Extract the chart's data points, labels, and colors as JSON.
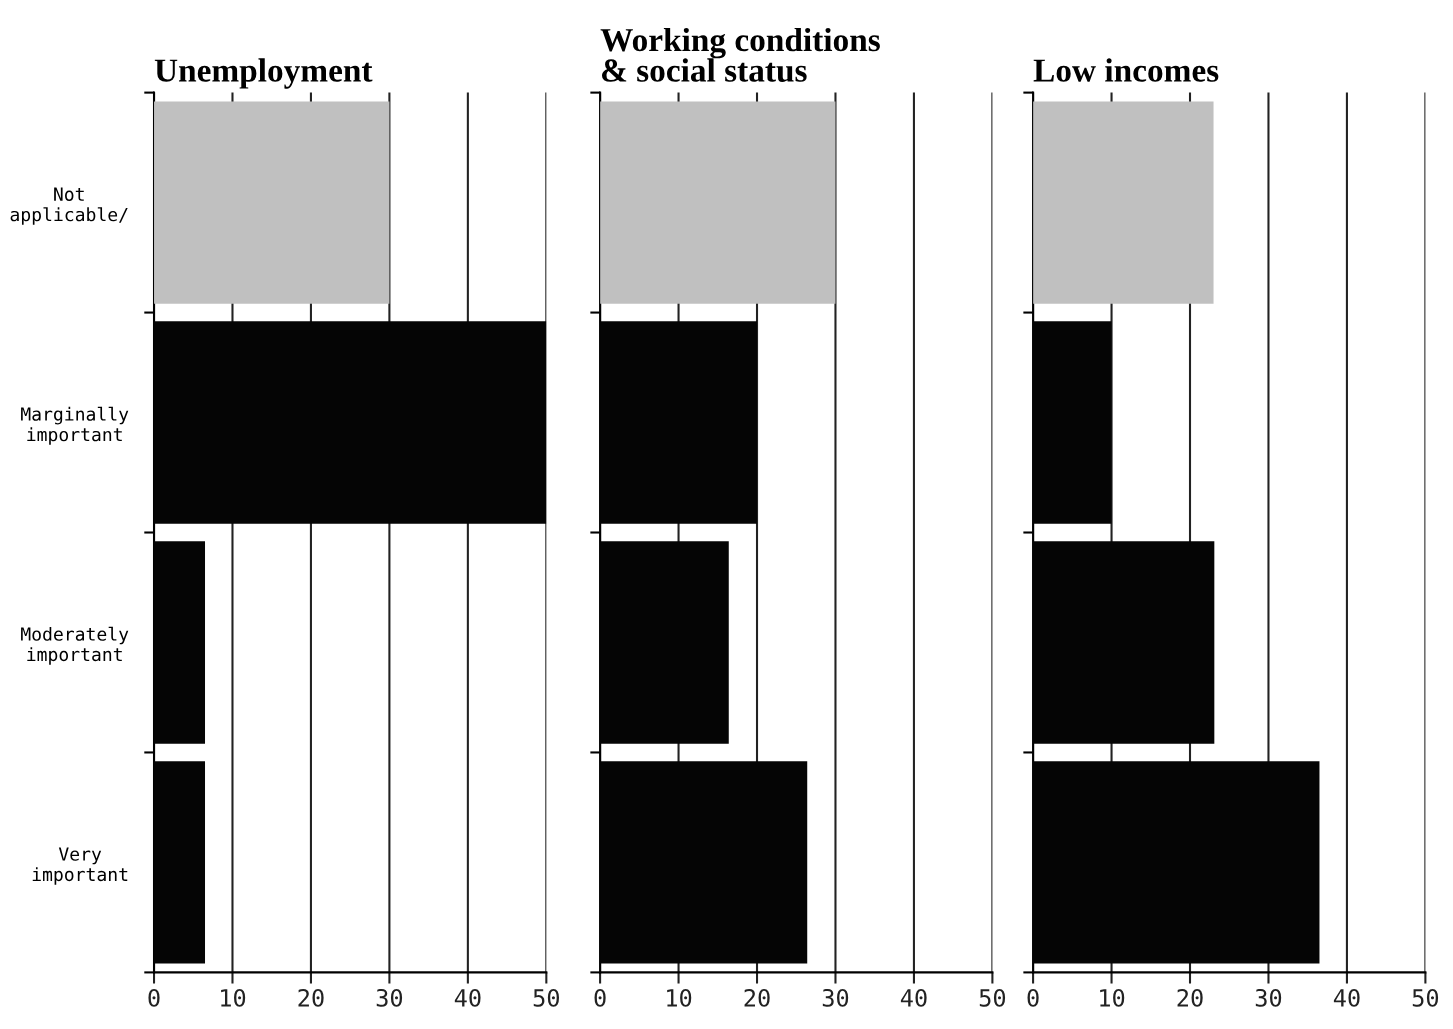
{
  "chart_data": [
    {
      "type": "bar",
      "orientation": "horizontal",
      "title": "Unemployment",
      "categories": [
        "Not\napplicable/",
        "Marginally\nimportant",
        "Moderately\nimportant",
        "Very\nimportant"
      ],
      "values": [
        30,
        50,
        6.5,
        6.5
      ],
      "colors": [
        "#c0c0c0",
        "#050505",
        "#050505",
        "#050505"
      ],
      "xlim": [
        0,
        50
      ],
      "xticks": [
        0,
        10,
        20,
        30,
        40,
        50
      ],
      "grid": "x"
    },
    {
      "type": "bar",
      "orientation": "horizontal",
      "title": "Working conditions\n& social status",
      "values": [
        30,
        20,
        16.4,
        26.4
      ],
      "colors": [
        "#c0c0c0",
        "#050505",
        "#050505",
        "#050505"
      ],
      "xlim": [
        0,
        50
      ],
      "xticks": [
        0,
        10,
        20,
        30,
        40,
        50
      ],
      "grid": "x",
      "tick_labels": "x"
    },
    {
      "type": "bar",
      "orientation": "horizontal",
      "title": "Low incomes",
      "values": [
        23,
        10,
        23.1,
        36.5
      ],
      "colors": [
        "#c0c0c0",
        "#050505",
        "#050505",
        "#050505"
      ],
      "xlim": [
        0,
        50
      ],
      "xticks": [
        0,
        10,
        20,
        30,
        40,
        50
      ],
      "grid": "x",
      "tick_labels": "x"
    }
  ]
}
